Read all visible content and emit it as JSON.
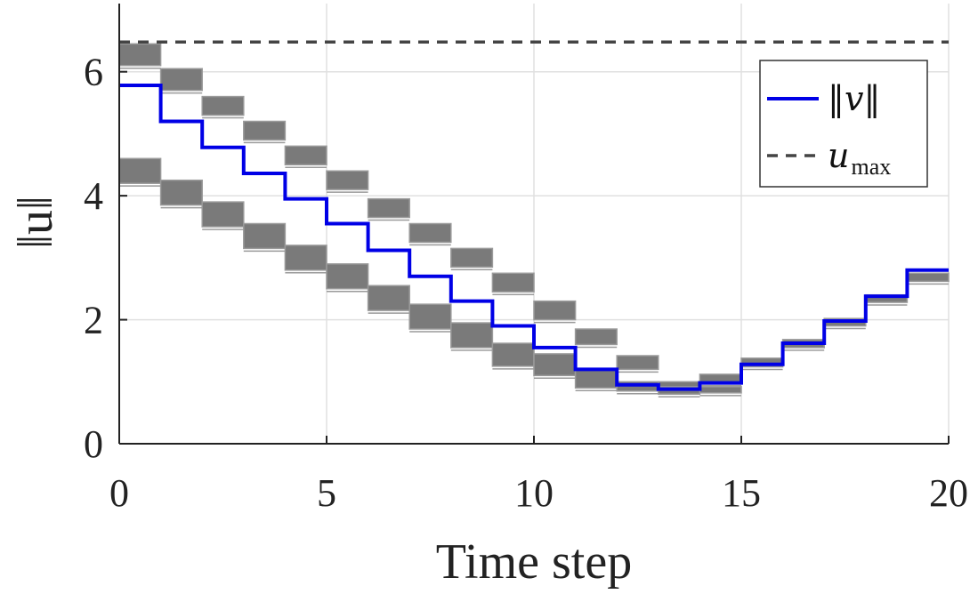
{
  "chart_data": {
    "type": "line",
    "xlabel": "Time step",
    "ylabel": "‖u‖",
    "xlim": [
      0,
      20
    ],
    "ylim": [
      0,
      7.1
    ],
    "xticks": [
      0,
      5,
      10,
      15,
      20
    ],
    "yticks": [
      0,
      2,
      4,
      6
    ],
    "xtick_labels": [
      "0",
      "5",
      "10",
      "15",
      "20"
    ],
    "ytick_labels": [
      "0",
      "2",
      "4",
      "6"
    ],
    "grid": true,
    "legend_position": "top-right",
    "colors": {
      "v_line": "#0000e6",
      "u_max": "#444444",
      "band_fill": "#7a7a7a",
      "band_edge": "#9a9a9a",
      "grid": "#e0e0e0"
    },
    "series": [
      {
        "name": "‖v‖",
        "style": "step-solid",
        "x": [
          0,
          1,
          2,
          3,
          4,
          5,
          6,
          7,
          8,
          9,
          10,
          11,
          12,
          13,
          14,
          15,
          16,
          17,
          18,
          19,
          20
        ],
        "values": [
          5.78,
          5.2,
          4.78,
          4.36,
          3.95,
          3.55,
          3.12,
          2.7,
          2.3,
          1.9,
          1.55,
          1.2,
          0.95,
          0.88,
          0.98,
          1.28,
          1.62,
          1.98,
          2.38,
          2.8,
          2.8
        ]
      },
      {
        "name": "u_max",
        "style": "dashed",
        "x": [
          0,
          20
        ],
        "values": [
          6.48,
          6.48
        ]
      }
    ],
    "bands": [
      {
        "group": "upper",
        "x_start": [
          0,
          1,
          2,
          3,
          4,
          5,
          6,
          7,
          8,
          9,
          10,
          11,
          12,
          13,
          14,
          15,
          16,
          17,
          18,
          19
        ],
        "low": [
          6.1,
          5.7,
          5.3,
          4.9,
          4.5,
          4.1,
          3.65,
          3.25,
          2.85,
          2.45,
          2.0,
          1.6,
          1.2,
          0.88,
          0.98,
          1.24,
          1.55,
          1.9,
          2.28,
          2.62
        ],
        "high": [
          6.45,
          6.05,
          5.6,
          5.2,
          4.8,
          4.4,
          3.95,
          3.55,
          3.15,
          2.75,
          2.3,
          1.85,
          1.42,
          1.0,
          1.12,
          1.38,
          1.68,
          2.02,
          2.4,
          2.75
        ]
      },
      {
        "group": "lower",
        "x_start": [
          0,
          1,
          2,
          3,
          4,
          5,
          6,
          7,
          8,
          9,
          10,
          11,
          12,
          13,
          14
        ],
        "low": [
          4.2,
          3.85,
          3.5,
          3.15,
          2.8,
          2.5,
          2.15,
          1.85,
          1.55,
          1.25,
          1.1,
          0.9,
          0.85,
          0.8,
          0.82
        ],
        "high": [
          4.6,
          4.25,
          3.9,
          3.55,
          3.2,
          2.9,
          2.55,
          2.25,
          1.95,
          1.62,
          1.45,
          1.2,
          1.0,
          0.92,
          0.92
        ]
      }
    ]
  },
  "legend": {
    "entries": [
      {
        "label": "‖v‖",
        "sub": ""
      },
      {
        "label": "u",
        "sub": "max"
      }
    ]
  }
}
